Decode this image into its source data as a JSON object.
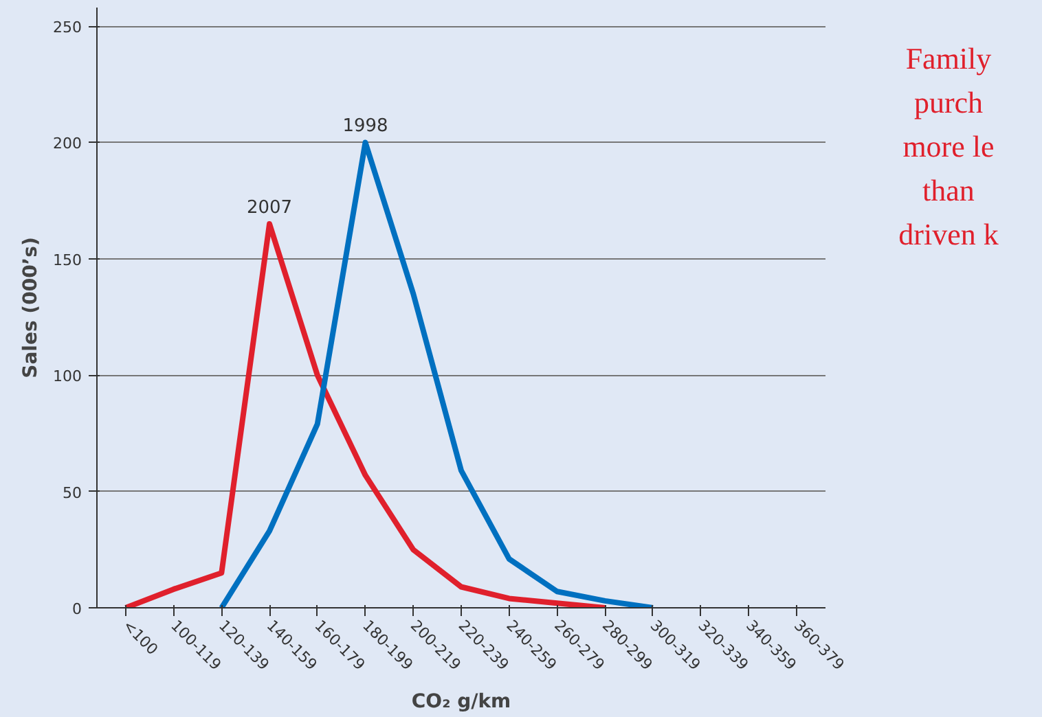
{
  "chart_data": {
    "type": "line",
    "xlabel": "CO₂ g/km",
    "ylabel": "Sales (000’s)",
    "categories": [
      "<100",
      "100-119",
      "120-139",
      "140-159",
      "160-179",
      "180-199",
      "200-219",
      "220-239",
      "240-259",
      "260-279",
      "280-299",
      "300-319",
      "320-339",
      "340-359",
      "360-379"
    ],
    "series": [
      {
        "name": "2007",
        "color": "#e0202c",
        "values": [
          0,
          8,
          15,
          165,
          100,
          57,
          25,
          9,
          4,
          2,
          0,
          null,
          null,
          null,
          null
        ]
      },
      {
        "name": "1998",
        "color": "#0070c0",
        "values": [
          null,
          null,
          0,
          33,
          79,
          200,
          135,
          59,
          21,
          7,
          3,
          0,
          null,
          null,
          null
        ]
      }
    ],
    "ylim": [
      0,
      258
    ],
    "yticks": [
      0,
      50,
      100,
      150,
      200,
      250
    ],
    "grid": "y",
    "legend": false,
    "marker": "none",
    "line_style": "solid",
    "annotations": [
      "Family\npurch\nmore le\nthan\ndriven k"
    ]
  }
}
